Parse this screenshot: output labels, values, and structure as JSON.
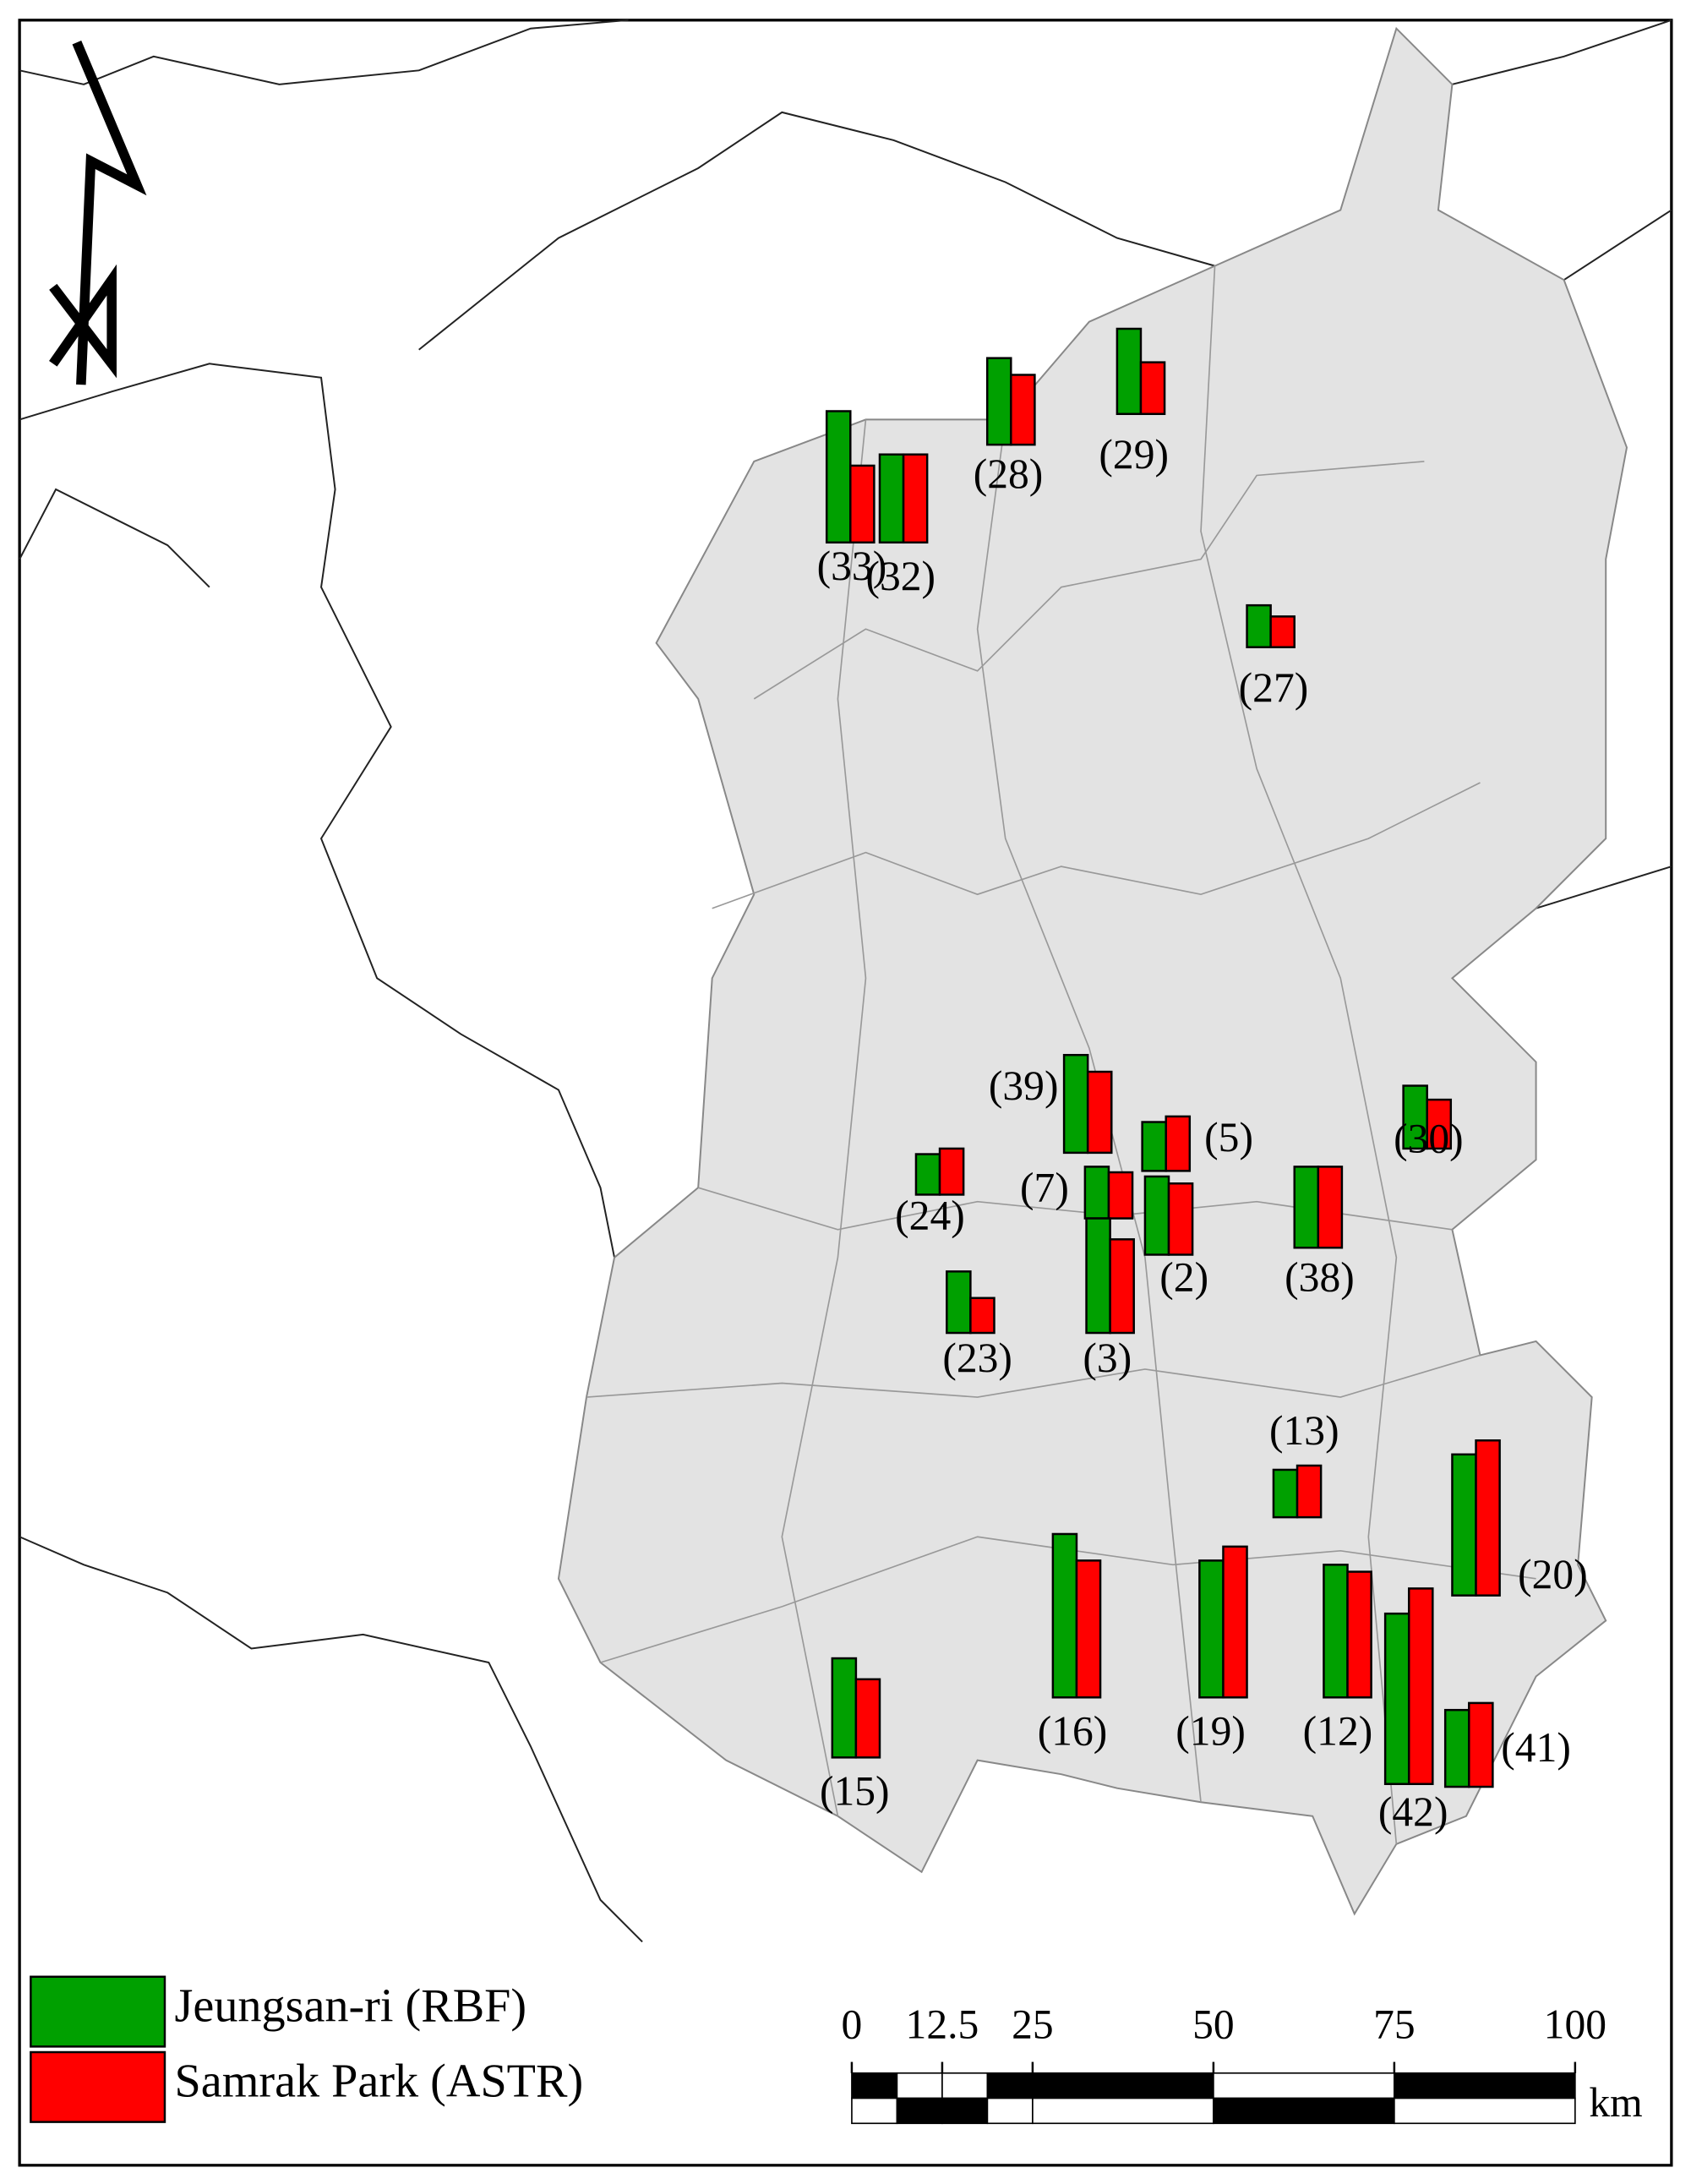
{
  "map": {
    "series": [
      {
        "name": "Jeungsan-ri (RBF)",
        "color": "#00a000"
      },
      {
        "name": "Samrak Park (ASTR)",
        "color": "#ff0000"
      }
    ],
    "sites": [
      {
        "label": "(29)",
        "values": [
          61,
          37
        ]
      },
      {
        "label": "(32)",
        "values": [
          63,
          63
        ]
      },
      {
        "label": "(27)",
        "values": [
          30,
          22
        ]
      },
      {
        "label": "(28)",
        "values": [
          62,
          50
        ]
      },
      {
        "label": "(33)",
        "values": [
          94,
          55
        ]
      },
      {
        "label": "(39)",
        "values": [
          70,
          58
        ]
      },
      {
        "label": "(5)",
        "values": [
          35,
          39
        ]
      },
      {
        "label": "(30)",
        "values": [
          45,
          35
        ]
      },
      {
        "label": "(24)",
        "values": [
          29,
          33
        ]
      },
      {
        "label": "(7)",
        "values": [
          37,
          33
        ]
      },
      {
        "label": "(2)",
        "values": [
          56,
          51
        ]
      },
      {
        "label": "(38)",
        "values": [
          58,
          58
        ]
      },
      {
        "label": "(23)",
        "values": [
          44,
          25
        ]
      },
      {
        "label": "(3)",
        "values": [
          82,
          67
        ]
      },
      {
        "label": "(13)",
        "values": [
          34,
          37
        ]
      },
      {
        "label": "(20)",
        "values": [
          101,
          111
        ]
      },
      {
        "label": "(16)",
        "values": [
          117,
          98
        ]
      },
      {
        "label": "(19)",
        "values": [
          98,
          108
        ]
      },
      {
        "label": "(12)",
        "values": [
          95,
          90
        ]
      },
      {
        "label": "(42)",
        "values": [
          122,
          140
        ]
      },
      {
        "label": "(41)",
        "values": [
          55,
          60
        ]
      },
      {
        "label": "(15)",
        "values": [
          71,
          56
        ]
      }
    ],
    "scale_bar": {
      "ticks": [
        0,
        12.5,
        25,
        50,
        75,
        100
      ],
      "unit": "km"
    }
  }
}
